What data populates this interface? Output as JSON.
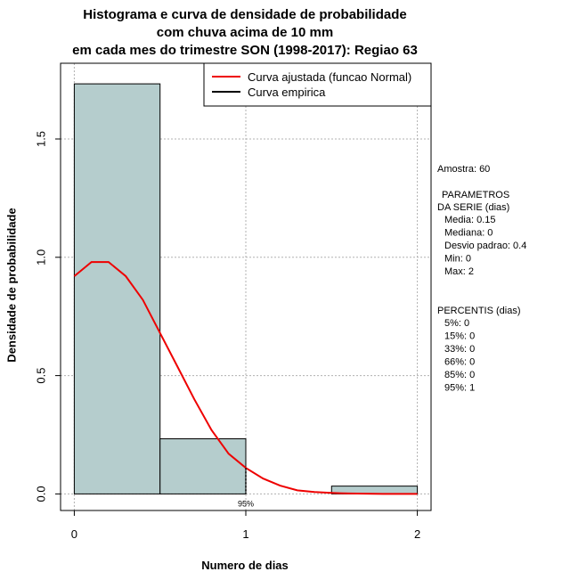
{
  "chart_data": {
    "type": "bar",
    "title": [
      "Histograma e curva de densidade de probabilidade",
      "com chuva acima de 10 mm",
      "em cada mes do trimestre SON (1998-2017): Regiao 63"
    ],
    "xlabel": "Numero de dias",
    "ylabel": "Densidade de probabilidade",
    "xlim": [
      -0.08,
      2.08
    ],
    "ylim": [
      -0.07,
      1.82
    ],
    "x_ticks": [
      0,
      1,
      2
    ],
    "x_tick_labels": [
      "0",
      "1",
      "2"
    ],
    "y_ticks": [
      0.0,
      0.5,
      1.0,
      1.5
    ],
    "y_tick_labels": [
      "0.0",
      "0.5",
      "1.0",
      "1.5"
    ],
    "grid": true,
    "histogram": {
      "bins": [
        {
          "from": 0.0,
          "to": 0.5,
          "density": 1.733
        },
        {
          "from": 0.5,
          "to": 1.0,
          "density": 0.233
        },
        {
          "from": 1.5,
          "to": 2.0,
          "density": 0.033
        }
      ],
      "fill_color": "#b5cdcd"
    },
    "series": [
      {
        "name": "Curva ajustada (funcao Normal)",
        "color": "#ee0000",
        "x": [
          0.0,
          0.1,
          0.2,
          0.3,
          0.4,
          0.5,
          0.6,
          0.7,
          0.8,
          0.9,
          1.0,
          1.1,
          1.2,
          1.3,
          1.4,
          1.5,
          1.6,
          1.7,
          1.8,
          1.9,
          2.0
        ],
        "y": [
          0.92,
          0.98,
          0.98,
          0.92,
          0.82,
          0.68,
          0.54,
          0.4,
          0.27,
          0.17,
          0.11,
          0.065,
          0.035,
          0.015,
          0.008,
          0.004,
          0.002,
          0.001,
          0.0,
          0.0,
          0.0
        ]
      },
      {
        "name": "Curva empirica",
        "color": "#000000",
        "x": [],
        "y": []
      }
    ],
    "legend_position": "top-right",
    "percentile_marker": {
      "x": 1,
      "label": "95%"
    }
  },
  "side_panel": {
    "sample": "Amostra: 60",
    "params_heading_1": "PARAMETROS",
    "params_heading_2": "DA SERIE (dias)",
    "params": [
      "Media: 0.15",
      "Mediana: 0",
      "Desvio padrao: 0.4",
      "Min: 0",
      "Max: 2"
    ],
    "percentiles_heading": "PERCENTIS (dias)",
    "percentiles": [
      "5%: 0",
      "15%: 0",
      "33%: 0",
      "66%: 0",
      "85%: 0",
      "95%: 1"
    ]
  }
}
